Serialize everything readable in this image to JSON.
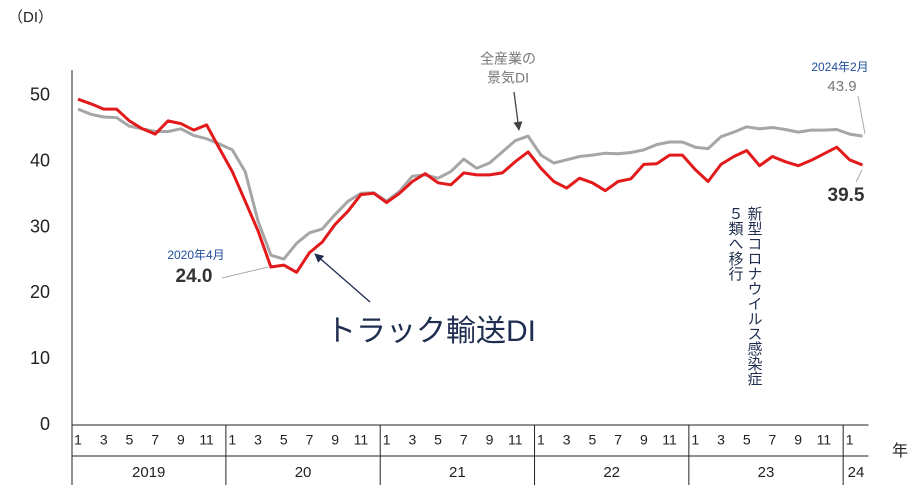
{
  "chart_data": {
    "type": "line",
    "y_label": "（DI）",
    "x_unit": "年",
    "categories": [
      "1",
      null,
      "3",
      null,
      "5",
      null,
      "7",
      null,
      "9",
      null,
      "11",
      null,
      "1",
      null,
      "3",
      null,
      "5",
      null,
      "7",
      null,
      "9",
      null,
      "11",
      null,
      "1",
      null,
      "3",
      null,
      "5",
      null,
      "7",
      null,
      "9",
      null,
      "11",
      null,
      "1",
      null,
      "3",
      null,
      "5",
      null,
      "7",
      null,
      "9",
      null,
      "11",
      null,
      "1",
      null,
      "3",
      null,
      "5",
      null,
      "7",
      null,
      "9",
      null,
      "11",
      null,
      "1",
      null
    ],
    "years": [
      "2019",
      "20",
      "21",
      "22",
      "23",
      "24"
    ],
    "ylim": [
      0,
      55
    ],
    "yticks": [
      0,
      10,
      20,
      30,
      40,
      50
    ],
    "grid": false,
    "series": [
      {
        "name": "トラック輸送DI",
        "color": "#e31a1c",
        "values": [
          49.5,
          48.8,
          48,
          48,
          46.2,
          45,
          44.2,
          46.2,
          45.8,
          44.8,
          45.6,
          42,
          38.5,
          34,
          29.5,
          24.0,
          24.3,
          23.2,
          26.2,
          27.8,
          30.5,
          32.5,
          35,
          35.2,
          33.8,
          35.2,
          37,
          38.2,
          36.8,
          36.5,
          38.3,
          38,
          38,
          38.3,
          40,
          41.5,
          39,
          37,
          36,
          37.5,
          36.8,
          35.6,
          37,
          37.4,
          39.6,
          39.7,
          41,
          41,
          38.8,
          37,
          39.6,
          40.8,
          41.7,
          39.4,
          40.8,
          40,
          39.4,
          40.2,
          41.2,
          42.2,
          40.3,
          39.5
        ]
      },
      {
        "color": "#a6a6a6",
        "values": [
          48,
          47.2,
          46.8,
          46.7,
          45.4,
          45,
          44.6,
          44.6,
          45,
          44,
          43.5,
          42.7,
          41.8,
          38.5,
          31,
          25.8,
          25.2,
          27.6,
          29.2,
          29.8,
          32,
          34,
          35.2,
          35.3,
          34,
          35.5,
          37.8,
          38,
          37.5,
          38.5,
          40.4,
          39,
          39.8,
          41.5,
          43.2,
          43.9,
          41,
          39.8,
          40.3,
          40.8,
          41,
          41.3,
          41.2,
          41.4,
          41.8,
          42.6,
          43,
          43,
          42.2,
          42,
          43.8,
          44.5,
          45.3,
          45,
          45.2,
          44.9,
          44.5,
          44.8,
          44.8,
          44.9,
          44.2,
          43.9
        ]
      }
    ],
    "annotations": {
      "all_industry": [
        "全産業の",
        "景気DI"
      ],
      "april_2020": {
        "date": "2020年4月",
        "value": "24.0"
      },
      "feb_2024": {
        "date": "2024年2月",
        "all_value": "43.9",
        "truck_value": "39.5"
      },
      "covid": [
        "新型コロナウイルス感染症",
        "５類へ移行"
      ]
    }
  }
}
